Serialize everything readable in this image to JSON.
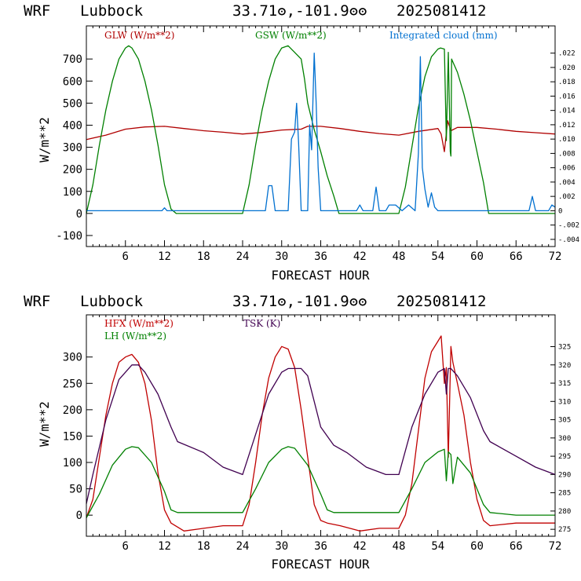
{
  "chart_data": [
    {
      "type": "line",
      "header": {
        "model": "WRF",
        "location": "Lubbock",
        "coords": "33.71ʘ,-101.9ʘʘ",
        "init": "2025081412"
      },
      "xlabel": "FORECAST HOUR",
      "ylabel": "W/m**2",
      "xlim": [
        0,
        72
      ],
      "xticks": [
        6,
        12,
        18,
        24,
        30,
        36,
        42,
        48,
        54,
        60,
        66,
        72
      ],
      "ylim": [
        -150,
        850
      ],
      "yticks": [
        -100,
        0,
        100,
        200,
        300,
        400,
        500,
        600,
        700
      ],
      "y2lim": [
        -0.005,
        0.0258
      ],
      "y2ticks": [
        -0.004,
        -0.002,
        0,
        0.002,
        0.004,
        0.006,
        0.008,
        0.01,
        0.012,
        0.014,
        0.016,
        0.018,
        0.02,
        0.022
      ],
      "y2ticklabels": [
        "-.004",
        "-.002",
        "0",
        ".002",
        ".004",
        ".006",
        ".008",
        ".010",
        ".012",
        ".014",
        ".016",
        ".018",
        ".020",
        ".022"
      ],
      "series": [
        {
          "name": "GLW (W/m**2)",
          "color": "#b00000",
          "axis": "left",
          "x": [
            0,
            3,
            6,
            9,
            12,
            15,
            18,
            21,
            24,
            27,
            30,
            33,
            34,
            36,
            39,
            42,
            45,
            48,
            51,
            54,
            54.5,
            55,
            55.5,
            56,
            57,
            60,
            63,
            66,
            69,
            72
          ],
          "y": [
            335,
            355,
            382,
            392,
            395,
            385,
            375,
            368,
            360,
            367,
            378,
            382,
            395,
            395,
            385,
            372,
            362,
            355,
            372,
            385,
            360,
            280,
            420,
            375,
            390,
            390,
            382,
            372,
            366,
            360
          ]
        },
        {
          "name": "GSW (W/m**2)",
          "color": "#008000",
          "axis": "left",
          "x": [
            0,
            1,
            2,
            3,
            4,
            5,
            6,
            6.5,
            7,
            8,
            9,
            10,
            11,
            12,
            13,
            13.8,
            24,
            25,
            26,
            27,
            28,
            29,
            30,
            31,
            32,
            33,
            33.5,
            34,
            35,
            36,
            37,
            38,
            38.8,
            48,
            49,
            50,
            51,
            52,
            53,
            54,
            54.4,
            55,
            55.3,
            55.6,
            55.9,
            56,
            56.1,
            57,
            58,
            59,
            60,
            61,
            61.8,
            72
          ],
          "y": [
            0,
            130,
            310,
            470,
            600,
            700,
            750,
            760,
            750,
            700,
            600,
            470,
            310,
            130,
            20,
            0,
            0,
            130,
            310,
            470,
            600,
            700,
            750,
            760,
            730,
            700,
            610,
            500,
            380,
            280,
            170,
            80,
            0,
            0,
            120,
            300,
            480,
            620,
            710,
            745,
            750,
            745,
            330,
            730,
            280,
            260,
            700,
            640,
            540,
            420,
            280,
            140,
            0,
            0
          ]
        },
        {
          "name": "Integrated cloud (mm)",
          "color": "#0070d0",
          "axis": "right",
          "x": [
            0,
            11.6,
            12,
            12.4,
            27.5,
            28,
            28.5,
            29,
            31,
            31.5,
            32,
            32.3,
            32.6,
            33,
            34,
            34.3,
            34.6,
            35,
            35.3,
            35.6,
            36,
            36.5,
            41.5,
            42,
            42.5,
            44,
            44.5,
            45,
            46,
            46.5,
            47.5,
            48.5,
            49.5,
            50.5,
            51,
            51.3,
            51.6,
            52,
            52.5,
            53,
            53.5,
            54,
            68,
            68.5,
            69,
            71,
            71.5,
            72
          ],
          "y": [
            0,
            0,
            0.0004,
            0,
            0,
            0.0035,
            0.0035,
            0,
            0,
            0.01,
            0.011,
            0.015,
            0.0095,
            0,
            0,
            0.012,
            0.0085,
            0.022,
            0.015,
            0.006,
            0,
            0,
            0,
            0.0008,
            0,
            0,
            0.0033,
            0,
            0,
            0.0008,
            0.0008,
            0,
            0.0008,
            0,
            0.008,
            0.0215,
            0.006,
            0.003,
            0.0005,
            0.0025,
            0.0005,
            0,
            0,
            0.002,
            0,
            0,
            0.0008,
            0.0005
          ]
        }
      ]
    },
    {
      "type": "line",
      "header": {
        "model": "WRF",
        "location": "Lubbock",
        "coords": "33.71ʘ,-101.9ʘʘ",
        "init": "2025081412"
      },
      "xlabel": "FORECAST HOUR",
      "ylabel": "W/m**2",
      "xlim": [
        0,
        72
      ],
      "xticks": [
        6,
        12,
        18,
        24,
        30,
        36,
        42,
        48,
        54,
        60,
        66,
        72
      ],
      "ylim": [
        -40,
        380
      ],
      "yticks": [
        0,
        50,
        100,
        150,
        200,
        250,
        300
      ],
      "y2lim": [
        273.1,
        333.7
      ],
      "y2ticks": [
        275,
        280,
        285,
        290,
        295,
        300,
        305,
        310,
        315,
        320,
        325
      ],
      "y2ticklabels": [
        "275",
        "280",
        "285",
        "290",
        "295",
        "300",
        "305",
        "310",
        "315",
        "320",
        "325"
      ],
      "series": [
        {
          "name": "HFX (W/m**2)",
          "color": "#c00000",
          "axis": "left",
          "x": [
            0,
            1,
            2,
            3,
            4,
            5,
            6,
            7,
            8,
            9,
            10,
            11,
            12,
            13,
            15,
            18,
            21,
            24,
            25,
            26,
            27,
            28,
            29,
            30,
            31,
            32,
            33,
            34,
            35,
            36,
            37,
            39,
            42,
            45,
            48,
            49,
            50,
            51,
            52,
            53,
            54,
            54.5,
            55,
            55.3,
            55.6,
            56,
            56.3,
            57,
            58,
            59,
            60,
            61,
            62,
            66,
            69,
            72
          ],
          "y": [
            -5,
            30,
            110,
            190,
            250,
            290,
            300,
            305,
            290,
            250,
            180,
            80,
            10,
            -15,
            -30,
            -25,
            -20,
            -20,
            20,
            100,
            190,
            260,
            300,
            320,
            315,
            280,
            200,
            110,
            20,
            -10,
            -15,
            -20,
            -30,
            -25,
            -25,
            0,
            60,
            160,
            260,
            310,
            330,
            340,
            250,
            280,
            110,
            320,
            290,
            250,
            190,
            100,
            30,
            -10,
            -20,
            -15,
            -15,
            -15
          ]
        },
        {
          "name": "LH (W/m**2)",
          "color": "#008000",
          "axis": "left",
          "x": [
            0,
            2,
            4,
            6,
            7,
            8,
            10,
            12,
            13,
            14,
            18,
            24,
            26,
            28,
            30,
            31,
            32,
            34,
            36,
            37,
            38,
            42,
            48,
            50,
            52,
            54,
            55,
            55.3,
            55.6,
            56,
            56.3,
            57,
            59,
            60,
            61,
            62,
            66,
            72
          ],
          "y": [
            -5,
            40,
            95,
            125,
            130,
            128,
            100,
            45,
            10,
            5,
            5,
            5,
            50,
            100,
            125,
            130,
            127,
            95,
            40,
            10,
            5,
            5,
            5,
            50,
            100,
            120,
            125,
            65,
            120,
            115,
            60,
            110,
            80,
            50,
            20,
            5,
            0,
            0
          ]
        },
        {
          "name": "TSK (K)",
          "color": "#400050",
          "axis": "right",
          "x": [
            0,
            1,
            3,
            5,
            7,
            8,
            9,
            11,
            13,
            14,
            18,
            21,
            24,
            26,
            28,
            30,
            31,
            33,
            34,
            36,
            38,
            40,
            43,
            46,
            48,
            50,
            52,
            54,
            55,
            55.3,
            55.6,
            56,
            57,
            59,
            61,
            62,
            66,
            69,
            72
          ],
          "y": [
            282,
            290,
            305,
            316,
            320,
            320,
            318,
            312,
            303,
            299,
            296,
            292,
            290,
            301,
            312,
            318,
            319,
            319,
            317,
            303,
            298,
            296,
            292,
            290,
            290,
            303,
            312,
            318,
            319,
            312,
            319,
            319,
            317,
            311,
            302,
            299,
            295,
            292,
            290
          ]
        }
      ]
    }
  ]
}
